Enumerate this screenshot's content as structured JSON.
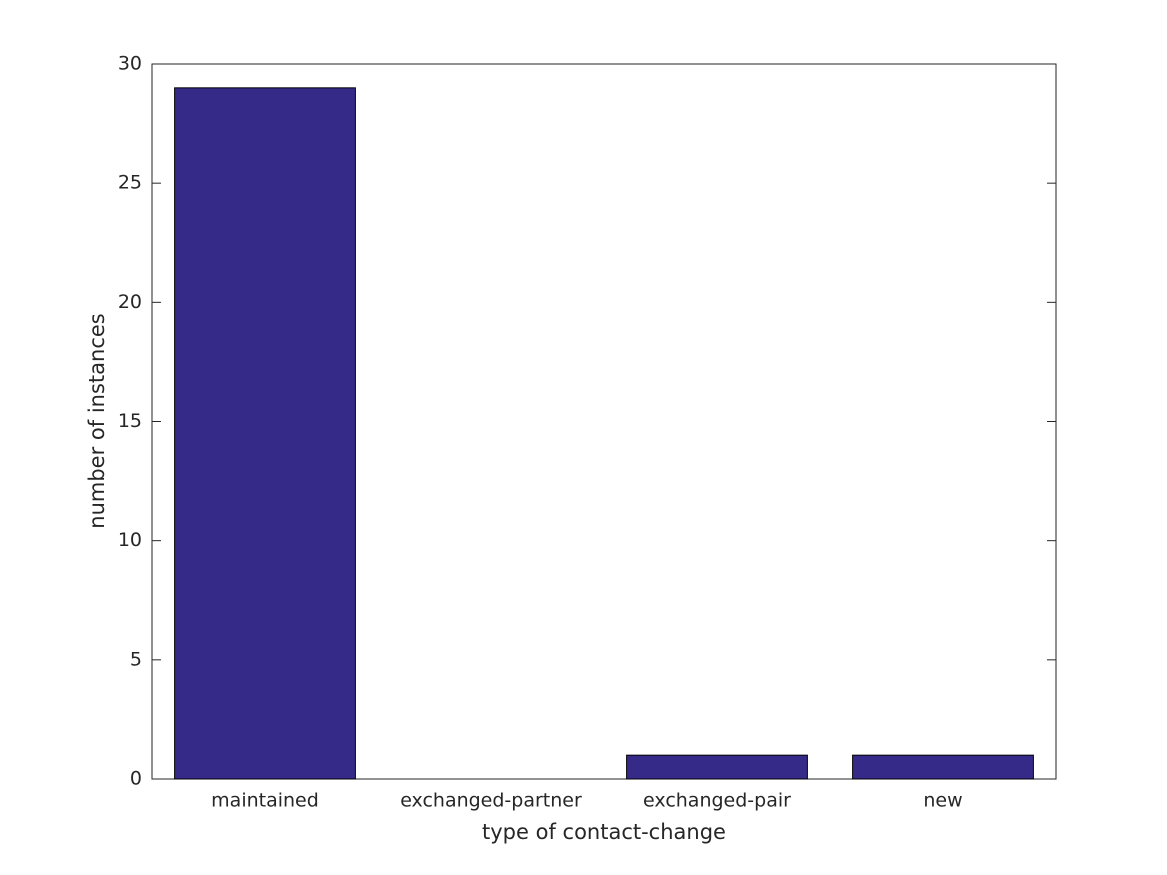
{
  "chart_data": {
    "type": "bar",
    "xlabel": "type of contact-change",
    "ylabel": "number of instances",
    "categories": [
      "maintained",
      "exchanged-partner",
      "exchanged-pair",
      "new"
    ],
    "values": [
      29,
      0,
      1,
      1
    ],
    "color": "#352a87",
    "ylim": [
      0,
      30
    ],
    "yticks": [
      0,
      5,
      10,
      15,
      20,
      25,
      30
    ],
    "grid": false
  }
}
